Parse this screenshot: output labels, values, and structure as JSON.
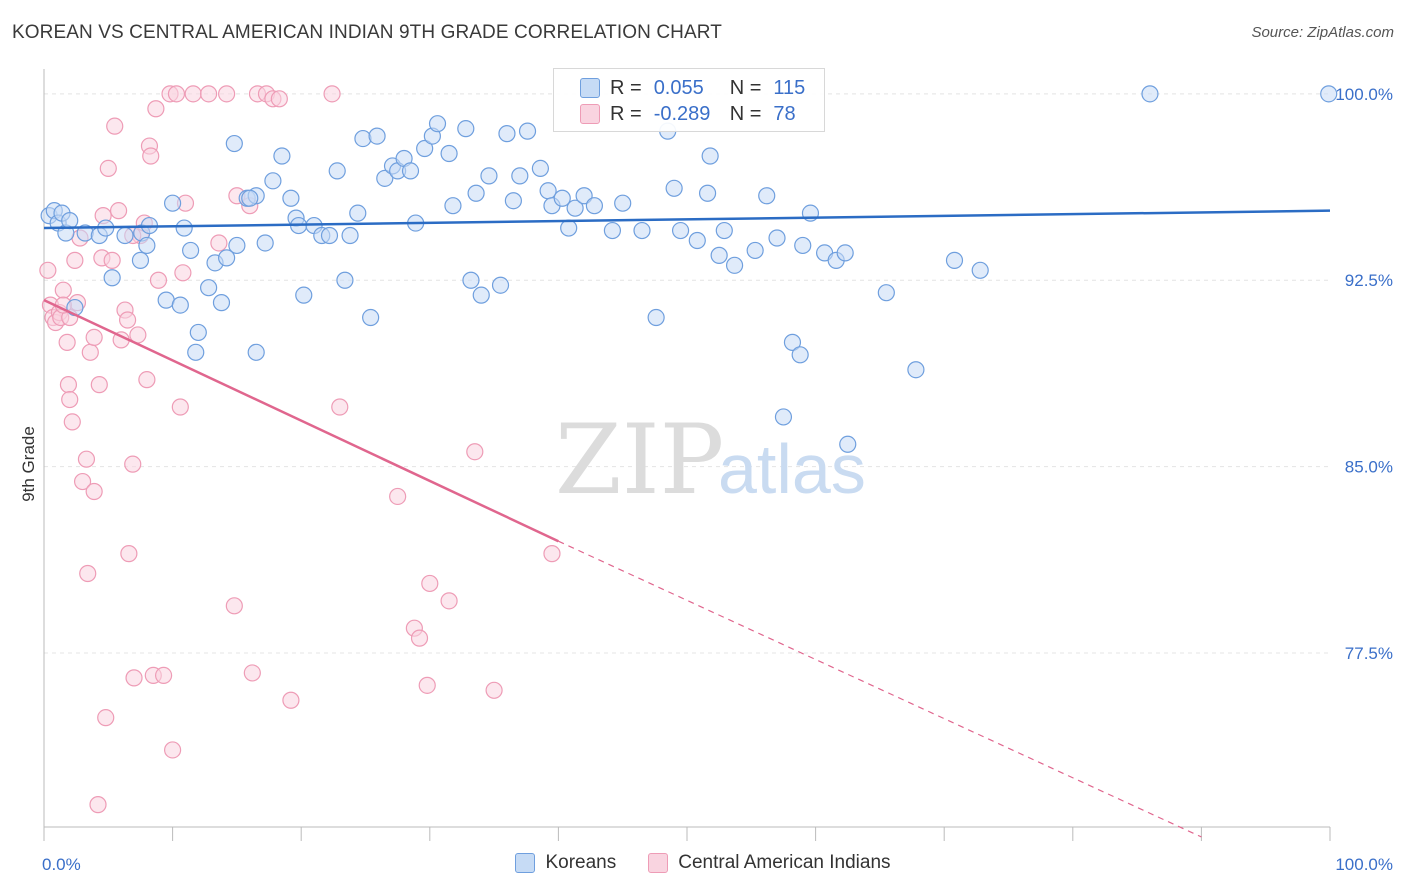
{
  "title": "KOREAN VS CENTRAL AMERICAN INDIAN 9TH GRADE CORRELATION CHART",
  "source": "Source: ZipAtlas.com",
  "watermark": {
    "zip": "ZIP",
    "atlas": "atlas"
  },
  "colors": {
    "korean": "#6f9fde",
    "korean_fill": "#c6dbf5",
    "korean_line": "#2b6cc4",
    "cai": "#ee9cb6",
    "cai_fill": "#f9d4e0",
    "cai_line": "#e0668e",
    "axis_text": "#3a6fc9",
    "grid": "#e4e4e4"
  },
  "legend": {
    "rows": [
      {
        "r_label": "R =",
        "r_value": "0.055",
        "n_label": "N =",
        "n_value": "115"
      },
      {
        "r_label": "R =",
        "r_value": "-0.289",
        "n_label": "N =",
        "n_value": "78"
      }
    ]
  },
  "bottom_legend": [
    "Koreans",
    "Central American Indians"
  ],
  "chart_data": {
    "type": "scatter",
    "xlabel": "",
    "ylabel": "9th Grade",
    "xlim": [
      0,
      100
    ],
    "ylim": [
      70.5,
      101
    ],
    "x_tick_labels": [
      "0.0%",
      "100.0%"
    ],
    "y_ticks": [
      77.5,
      85.0,
      92.5,
      100.0
    ],
    "y_tick_labels": [
      "77.5%",
      "85.0%",
      "92.5%",
      "100.0%"
    ],
    "grid": true,
    "series": [
      {
        "name": "Koreans",
        "trend": {
          "x": [
            0,
            100
          ],
          "y": [
            94.6,
            95.3
          ]
        },
        "points": [
          [
            0.4,
            95.1
          ],
          [
            0.8,
            95.3
          ],
          [
            1.1,
            94.8
          ],
          [
            1.4,
            95.2
          ],
          [
            1.7,
            94.4
          ],
          [
            2.0,
            94.9
          ],
          [
            2.4,
            91.4
          ],
          [
            3.2,
            94.4
          ],
          [
            4.3,
            94.3
          ],
          [
            5.3,
            92.6
          ],
          [
            7.6,
            94.4
          ],
          [
            7.5,
            93.3
          ],
          [
            8.2,
            94.7
          ],
          [
            8.0,
            93.9
          ],
          [
            9.5,
            91.7
          ],
          [
            10.0,
            95.6
          ],
          [
            10.6,
            91.5
          ],
          [
            10.9,
            94.6
          ],
          [
            11.4,
            93.7
          ],
          [
            12.0,
            90.4
          ],
          [
            11.8,
            89.6
          ],
          [
            12.8,
            92.2
          ],
          [
            13.3,
            93.2
          ],
          [
            13.8,
            91.6
          ],
          [
            14.2,
            93.4
          ],
          [
            14.8,
            98.0
          ],
          [
            15.0,
            93.9
          ],
          [
            15.8,
            95.8
          ],
          [
            16.5,
            95.9
          ],
          [
            16.5,
            89.6
          ],
          [
            17.2,
            94.0
          ],
          [
            17.8,
            96.5
          ],
          [
            18.5,
            97.5
          ],
          [
            19.2,
            95.8
          ],
          [
            19.6,
            95.0
          ],
          [
            19.8,
            94.7
          ],
          [
            20.2,
            91.9
          ],
          [
            21.0,
            94.7
          ],
          [
            21.6,
            94.3
          ],
          [
            22.2,
            94.3
          ],
          [
            22.8,
            96.9
          ],
          [
            23.4,
            92.5
          ],
          [
            23.8,
            94.3
          ],
          [
            24.4,
            95.2
          ],
          [
            24.8,
            98.2
          ],
          [
            25.4,
            91.0
          ],
          [
            25.9,
            98.3
          ],
          [
            26.5,
            96.6
          ],
          [
            27.1,
            97.1
          ],
          [
            27.5,
            96.9
          ],
          [
            28.0,
            97.4
          ],
          [
            28.5,
            96.9
          ],
          [
            28.9,
            94.8
          ],
          [
            29.6,
            97.8
          ],
          [
            30.2,
            98.3
          ],
          [
            30.6,
            98.8
          ],
          [
            31.5,
            97.6
          ],
          [
            31.8,
            95.5
          ],
          [
            32.8,
            98.6
          ],
          [
            33.2,
            92.5
          ],
          [
            33.6,
            96.0
          ],
          [
            34.0,
            91.9
          ],
          [
            34.6,
            96.7
          ],
          [
            35.5,
            92.3
          ],
          [
            36.0,
            98.4
          ],
          [
            36.5,
            95.7
          ],
          [
            37.0,
            96.7
          ],
          [
            37.6,
            98.5
          ],
          [
            38.6,
            97.0
          ],
          [
            39.2,
            96.1
          ],
          [
            39.5,
            95.5
          ],
          [
            40.3,
            95.8
          ],
          [
            40.8,
            94.6
          ],
          [
            41.3,
            95.4
          ],
          [
            42.0,
            95.9
          ],
          [
            42.8,
            95.5
          ],
          [
            44.2,
            94.5
          ],
          [
            45.0,
            95.6
          ],
          [
            46.5,
            94.5
          ],
          [
            47.6,
            91.0
          ],
          [
            48.5,
            98.5
          ],
          [
            49.0,
            96.2
          ],
          [
            49.5,
            94.5
          ],
          [
            50.8,
            94.1
          ],
          [
            51.6,
            96.0
          ],
          [
            51.8,
            97.5
          ],
          [
            52.5,
            93.5
          ],
          [
            52.9,
            94.5
          ],
          [
            53.7,
            93.1
          ],
          [
            55.3,
            93.7
          ],
          [
            56.2,
            95.9
          ],
          [
            57.0,
            94.2
          ],
          [
            57.5,
            87.0
          ],
          [
            58.2,
            90.0
          ],
          [
            58.8,
            89.5
          ],
          [
            59.0,
            93.9
          ],
          [
            59.6,
            95.2
          ],
          [
            60.7,
            93.6
          ],
          [
            61.6,
            93.3
          ],
          [
            62.3,
            93.6
          ],
          [
            62.5,
            85.9
          ],
          [
            65.5,
            92.0
          ],
          [
            67.8,
            88.9
          ],
          [
            70.8,
            93.3
          ],
          [
            72.8,
            92.9
          ],
          [
            86.0,
            100.0
          ],
          [
            99.9,
            100.0
          ],
          [
            4.8,
            94.6
          ],
          [
            6.3,
            94.3
          ],
          [
            16.0,
            95.8
          ]
        ]
      },
      {
        "name": "Central American Indians",
        "trend": {
          "x": [
            0,
            40
          ],
          "y": [
            91.7,
            82.0
          ]
        },
        "trend_extension": {
          "x": [
            40,
            90
          ],
          "y": [
            82.0,
            70.1
          ]
        },
        "points": [
          [
            0.3,
            92.9
          ],
          [
            0.5,
            91.5
          ],
          [
            0.7,
            91.0
          ],
          [
            0.9,
            90.8
          ],
          [
            1.2,
            91.2
          ],
          [
            1.3,
            91.0
          ],
          [
            1.5,
            92.1
          ],
          [
            1.8,
            90.0
          ],
          [
            1.9,
            88.3
          ],
          [
            2.0,
            87.7
          ],
          [
            2.2,
            86.8
          ],
          [
            2.6,
            91.6
          ],
          [
            2.8,
            94.2
          ],
          [
            2.4,
            93.3
          ],
          [
            3.0,
            84.4
          ],
          [
            3.3,
            85.3
          ],
          [
            3.4,
            80.7
          ],
          [
            3.6,
            89.6
          ],
          [
            3.9,
            90.2
          ],
          [
            3.9,
            84.0
          ],
          [
            4.3,
            88.3
          ],
          [
            4.5,
            93.4
          ],
          [
            4.6,
            95.1
          ],
          [
            4.8,
            74.9
          ],
          [
            5.0,
            97.0
          ],
          [
            5.3,
            93.3
          ],
          [
            5.5,
            98.7
          ],
          [
            5.8,
            95.3
          ],
          [
            6.0,
            90.1
          ],
          [
            6.3,
            91.3
          ],
          [
            6.5,
            90.9
          ],
          [
            6.6,
            81.5
          ],
          [
            6.9,
            85.1
          ],
          [
            7.0,
            76.5
          ],
          [
            7.3,
            90.3
          ],
          [
            7.5,
            94.3
          ],
          [
            7.8,
            94.8
          ],
          [
            8.0,
            88.5
          ],
          [
            8.2,
            97.9
          ],
          [
            8.3,
            97.5
          ],
          [
            8.5,
            76.6
          ],
          [
            8.7,
            99.4
          ],
          [
            8.9,
            92.5
          ],
          [
            9.3,
            76.6
          ],
          [
            9.8,
            100.0
          ],
          [
            10.0,
            73.6
          ],
          [
            10.3,
            100.0
          ],
          [
            10.6,
            87.4
          ],
          [
            10.8,
            92.8
          ],
          [
            11.0,
            95.6
          ],
          [
            11.6,
            100.0
          ],
          [
            12.8,
            100.0
          ],
          [
            13.6,
            94.0
          ],
          [
            14.2,
            100.0
          ],
          [
            14.8,
            79.4
          ],
          [
            15.0,
            95.9
          ],
          [
            16.0,
            95.5
          ],
          [
            16.2,
            76.7
          ],
          [
            16.6,
            100.0
          ],
          [
            17.3,
            100.0
          ],
          [
            17.8,
            99.8
          ],
          [
            18.3,
            99.8
          ],
          [
            19.2,
            75.6
          ],
          [
            22.4,
            100.0
          ],
          [
            23.0,
            87.4
          ],
          [
            27.5,
            83.8
          ],
          [
            28.8,
            78.5
          ],
          [
            29.2,
            78.1
          ],
          [
            29.8,
            76.2
          ],
          [
            30.0,
            80.3
          ],
          [
            31.5,
            79.6
          ],
          [
            33.5,
            85.6
          ],
          [
            35.0,
            76.0
          ],
          [
            39.5,
            81.5
          ],
          [
            4.2,
            71.4
          ],
          [
            6.9,
            94.3
          ],
          [
            2.0,
            91.0
          ],
          [
            1.5,
            91.5
          ]
        ]
      }
    ]
  }
}
